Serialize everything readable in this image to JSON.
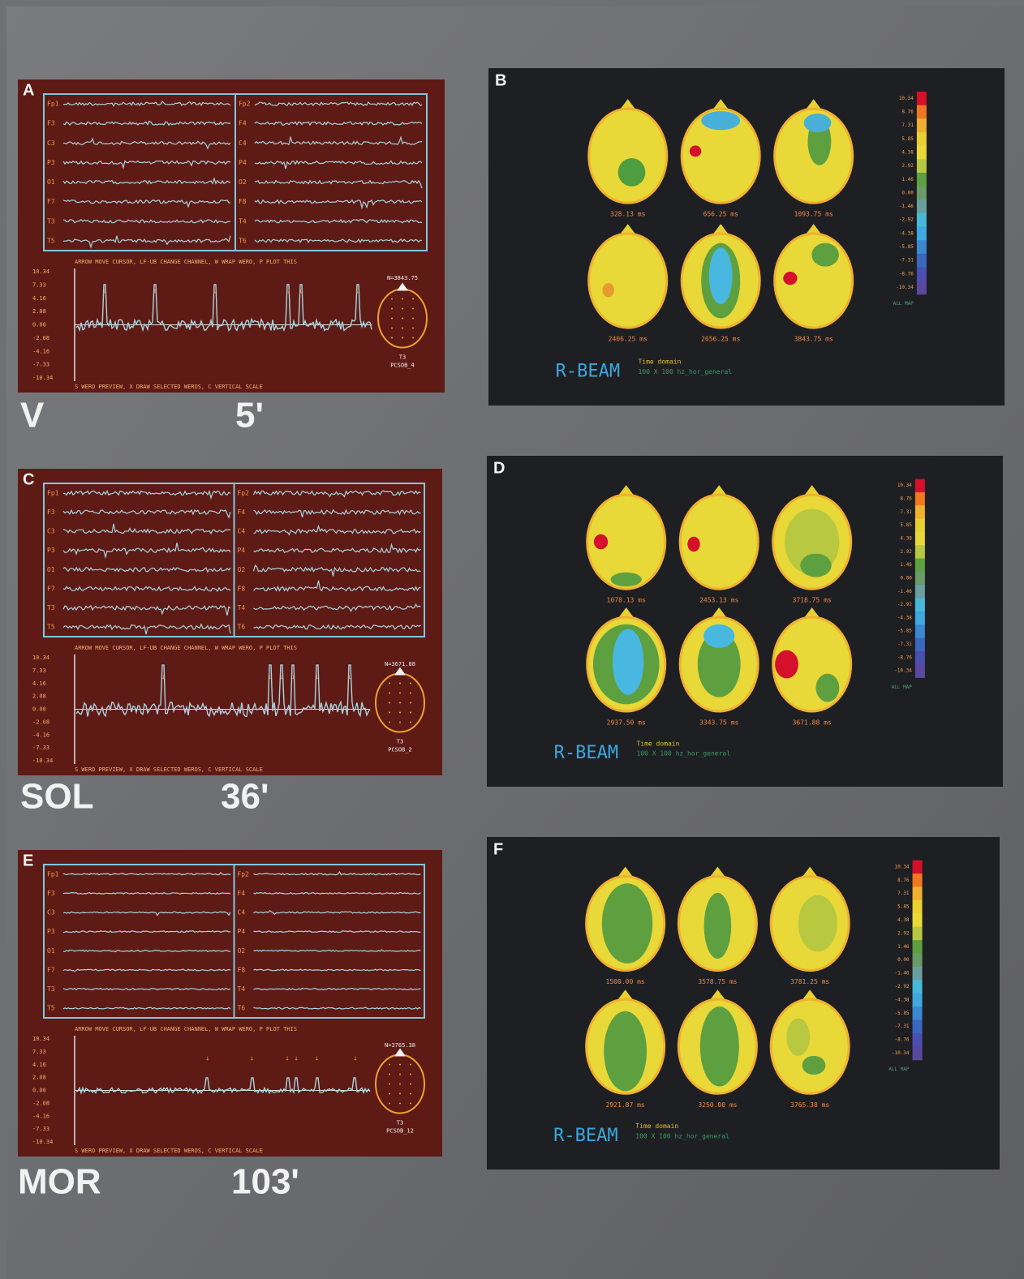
{
  "conditions": [
    {
      "name": "V",
      "time": "5'"
    },
    {
      "name": "SOL",
      "time": "36'"
    },
    {
      "name": "MOR",
      "time": "103'"
    }
  ],
  "eeg_panels": [
    {
      "letter": "A",
      "channels_left": [
        "Fp1",
        "F3",
        "C3",
        "P3",
        "O1",
        "F7",
        "T3",
        "T5"
      ],
      "channels_right": [
        "Fp2",
        "F4",
        "C4",
        "P4",
        "O2",
        "F8",
        "T4",
        "T6"
      ],
      "instruction": "ARROW MOVE CURSOR, LF-UB CHANGE CHANNEL, W WRAP WERO, P PLOT THIS",
      "footer": "S WERO PREVIEW, X DRAW SELECTED WEROS, C VERTICAL SCALE",
      "scale": [
        "10.34",
        "7.33",
        "4.16",
        "2.08",
        "0.00",
        "-2.08",
        "-4.16",
        "-7.33",
        "-10.34"
      ],
      "cursor": "N=3843.75",
      "electrode": "T3",
      "file": "PCSOB_4"
    },
    {
      "letter": "C",
      "channels_left": [
        "Fp1",
        "F3",
        "C3",
        "P3",
        "O1",
        "F7",
        "T3",
        "T5"
      ],
      "channels_right": [
        "Fp2",
        "F4",
        "C4",
        "P4",
        "O2",
        "F8",
        "T4",
        "T6"
      ],
      "instruction": "ARROW MOVE CURSOR, LF-UB CHANGE CHANNEL, W WRAP WERO, P PLOT THIS",
      "footer": "S WERO PREVIEW, X DRAW SELECTED WEROS, C VERTICAL SCALE",
      "scale": [
        "10.34",
        "7.33",
        "4.16",
        "2.08",
        "0.00",
        "-2.08",
        "-4.16",
        "-7.33",
        "-10.34"
      ],
      "cursor": "N=3671.88",
      "electrode": "T3",
      "file": "PCSOB_2"
    },
    {
      "letter": "E",
      "channels_left": [
        "Fp1",
        "F3",
        "C3",
        "P3",
        "O1",
        "F7",
        "T3",
        "T5"
      ],
      "channels_right": [
        "Fp2",
        "F4",
        "C4",
        "P4",
        "O2",
        "F8",
        "T4",
        "T6"
      ],
      "instruction": "ARROW MOVE CURSOR, LF-UB CHANGE CHANNEL, W WRAP WERO, P PLOT THIS",
      "footer": "S WERO PREVIEW, X DRAW SELECTED WEROS, C VERTICAL SCALE",
      "scale": [
        "10.34",
        "7.33",
        "4.16",
        "2.08",
        "0.00",
        "-2.08",
        "-4.16",
        "-7.33",
        "-10.34"
      ],
      "cursor": "N=3765.38",
      "electrode": "T3",
      "file": "PCSOB_12"
    }
  ],
  "map_panels": [
    {
      "letter": "B",
      "times": [
        "328.13 ms",
        "656.25 ms",
        "1093.75 ms",
        "2406.25 ms",
        "2656.25 ms",
        "3843.75 ms"
      ],
      "scale": [
        "10.34",
        "8.76",
        "7.31",
        "5.85",
        "4.38",
        "2.92",
        "1.46",
        "0.00",
        "-1.46",
        "-2.92",
        "-4.38",
        "-5.85",
        "-7.31",
        "-8.76",
        "-10.34"
      ],
      "scale_unit": "ALL MAP",
      "brand": "R-BEAM",
      "mode": "Time domain",
      "setting": "100 X 100 hz_hor_general"
    },
    {
      "letter": "D",
      "times": [
        "1078.13 ms",
        "2453.13 ms",
        "3718.75 ms",
        "2937.50 ms",
        "3343.75 ms",
        "3671.88 ms"
      ],
      "scale": [
        "10.34",
        "8.76",
        "7.31",
        "5.85",
        "4.38",
        "2.92",
        "1.46",
        "0.00",
        "-1.46",
        "-2.92",
        "-4.38",
        "-5.85",
        "-7.31",
        "-8.76",
        "-10.34"
      ],
      "scale_unit": "ALL MAP",
      "brand": "R-BEAM",
      "mode": "Time domain",
      "setting": "100 X 100 hz_hor_general"
    },
    {
      "letter": "F",
      "times": [
        "1500.00 ms",
        "3578.75 ms",
        "3781.25 ms",
        "2921.87 ms",
        "3250.00 ms",
        "3765.38 ms"
      ],
      "scale": [
        "10.34",
        "8.76",
        "7.31",
        "5.85",
        "4.38",
        "2.92",
        "1.46",
        "0.00",
        "-1.46",
        "-2.92",
        "-4.38",
        "-5.85",
        "-7.31",
        "-8.76",
        "-10.34"
      ],
      "scale_unit": "ALL MAP",
      "brand": "R-BEAM",
      "mode": "Time domain",
      "setting": "100 X 100 hz_hor_general"
    }
  ]
}
